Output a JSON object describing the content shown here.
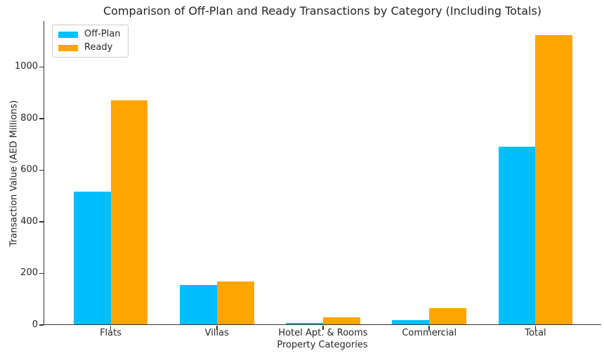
{
  "chart_data": {
    "type": "bar",
    "title": "Comparison of Off-Plan and Ready Transactions by Category (Including Totals)",
    "xlabel": "Property Categories",
    "ylabel": "Transaction Value (AED Millions)",
    "categories": [
      "Flats",
      "Villas",
      "Hotel Apt. & Rooms",
      "Commercial",
      "Total"
    ],
    "series": [
      {
        "name": "Off-Plan",
        "color": "#00BFFF",
        "values": [
          515,
          153,
          5,
          16,
          689
        ]
      },
      {
        "name": "Ready",
        "color": "#FFA500",
        "values": [
          868,
          165,
          27,
          62,
          1122
        ]
      }
    ],
    "ylim": [
      0,
      1178
    ],
    "yticks": [
      0,
      200,
      400,
      600,
      800,
      1000
    ],
    "legend_position": "upper left",
    "grid": false,
    "background_color": "#ffffff",
    "axis_color": "#333333",
    "text_color": "#262626"
  }
}
